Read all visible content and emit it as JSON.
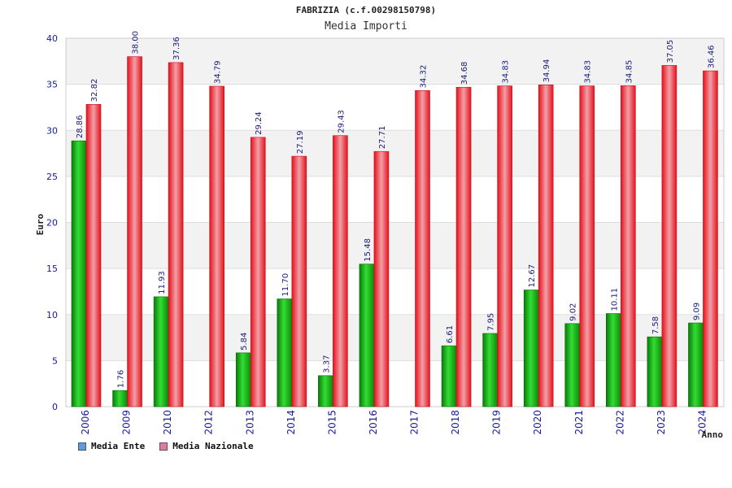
{
  "header": {
    "title": "FABRIZIA (c.f.00298150798)",
    "subtitle": "Media Importi"
  },
  "legend": {
    "items": [
      {
        "label": "Media Ente",
        "color": "#5b9be8"
      },
      {
        "label": "Media Nazionale",
        "color": "#e07aa0"
      }
    ]
  },
  "colors": {
    "ente": "#12b012",
    "nazionale": "#e8202a",
    "band": "#f2f2f2"
  },
  "chart_data": {
    "type": "bar",
    "xlabel": "Anno",
    "ylabel": "Euro",
    "ylim": [
      0,
      40
    ],
    "yticks": [
      0,
      5,
      10,
      15,
      20,
      25,
      30,
      35,
      40
    ],
    "categories": [
      "2006",
      "2009",
      "2010",
      "2012",
      "2013",
      "2014",
      "2015",
      "2016",
      "2017",
      "2018",
      "2019",
      "2020",
      "2021",
      "2022",
      "2023",
      "2024"
    ],
    "series": [
      {
        "name": "Media Ente",
        "values": [
          28.86,
          1.76,
          11.93,
          null,
          5.84,
          11.7,
          3.37,
          15.48,
          null,
          6.61,
          7.95,
          12.67,
          9.02,
          10.11,
          7.58,
          9.09
        ],
        "labels": [
          "28.86",
          "1.76",
          "11.93",
          "",
          "5.84",
          "11.70",
          "3.37",
          "15.48",
          "",
          "6.61",
          "7.95",
          "12.67",
          "9.02",
          "10.11",
          "7.58",
          "9.09"
        ]
      },
      {
        "name": "Media Nazionale",
        "values": [
          32.82,
          38.0,
          37.36,
          34.79,
          29.24,
          27.19,
          29.43,
          27.71,
          34.32,
          34.68,
          34.83,
          34.94,
          34.83,
          34.85,
          37.05,
          36.46
        ],
        "labels": [
          "32.82",
          "38.00",
          "37.36",
          "34.79",
          "29.24",
          "27.19",
          "29.43",
          "27.71",
          "34.32",
          "34.68",
          "34.83",
          "34.94",
          "34.83",
          "34.85",
          "37.05",
          "36.46"
        ]
      }
    ],
    "grid": true,
    "legend_position": "bottom-left"
  }
}
